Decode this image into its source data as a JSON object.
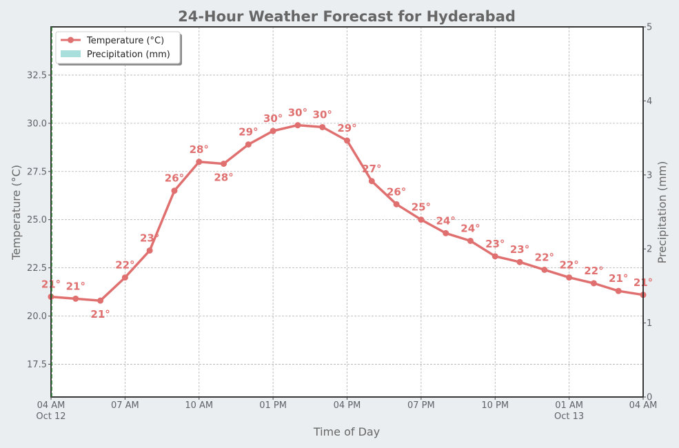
{
  "chart_data": {
    "type": "line",
    "title": "24-Hour Weather Forecast for Hyderabad",
    "xlabel": "Time of Day",
    "ylabel": "Temperature (°C)",
    "y2label": "Precipitation (mm)",
    "ylim": [
      15.8,
      35.0
    ],
    "y2lim": [
      0,
      5
    ],
    "yticks": [
      17.5,
      20.0,
      22.5,
      25.0,
      27.5,
      30.0,
      32.5
    ],
    "y2ticks": [
      0,
      1,
      2,
      3,
      4,
      5
    ],
    "xticks": [
      {
        "hour": 0,
        "label": "04 AM",
        "sublabel": "Oct 12"
      },
      {
        "hour": 3,
        "label": "07 AM",
        "sublabel": ""
      },
      {
        "hour": 6,
        "label": "10 AM",
        "sublabel": ""
      },
      {
        "hour": 9,
        "label": "01 PM",
        "sublabel": ""
      },
      {
        "hour": 12,
        "label": "04 PM",
        "sublabel": ""
      },
      {
        "hour": 15,
        "label": "07 PM",
        "sublabel": ""
      },
      {
        "hour": 18,
        "label": "10 PM",
        "sublabel": ""
      },
      {
        "hour": 21,
        "label": "01 AM",
        "sublabel": "Oct 13"
      },
      {
        "hour": 24,
        "label": "04 AM",
        "sublabel": ""
      }
    ],
    "grid": true,
    "legend_position": "top-left",
    "series": [
      {
        "name": "Temperature (°C)",
        "color": "#e07070",
        "hours": [
          0,
          1,
          2,
          3,
          4,
          5,
          6,
          7,
          8,
          9,
          10,
          11,
          12,
          13,
          14,
          15,
          16,
          17,
          18,
          19,
          20,
          21,
          22,
          23,
          24
        ],
        "values": [
          21.0,
          20.9,
          20.8,
          22.0,
          23.4,
          26.5,
          28.0,
          27.9,
          28.9,
          29.6,
          29.9,
          29.8,
          29.1,
          27.0,
          25.8,
          25.0,
          24.3,
          23.9,
          23.1,
          22.8,
          22.4,
          22.0,
          21.7,
          21.3,
          21.1
        ],
        "labels": [
          "21°",
          "21°",
          "21°",
          "22°",
          "23°",
          "26°",
          "28°",
          "28°",
          "29°",
          "30°",
          "30°",
          "30°",
          "29°",
          "27°",
          "26°",
          "25°",
          "24°",
          "24°",
          "23°",
          "23°",
          "22°",
          "22°",
          "22°",
          "21°",
          "21°"
        ],
        "label_below": [
          false,
          false,
          true,
          false,
          false,
          false,
          false,
          true,
          false,
          false,
          false,
          false,
          false,
          false,
          false,
          false,
          false,
          false,
          false,
          false,
          false,
          false,
          false,
          false,
          false
        ]
      },
      {
        "name": "Precipitation (mm)",
        "color": "#a8dfdc",
        "hours": [],
        "values": []
      }
    ]
  }
}
